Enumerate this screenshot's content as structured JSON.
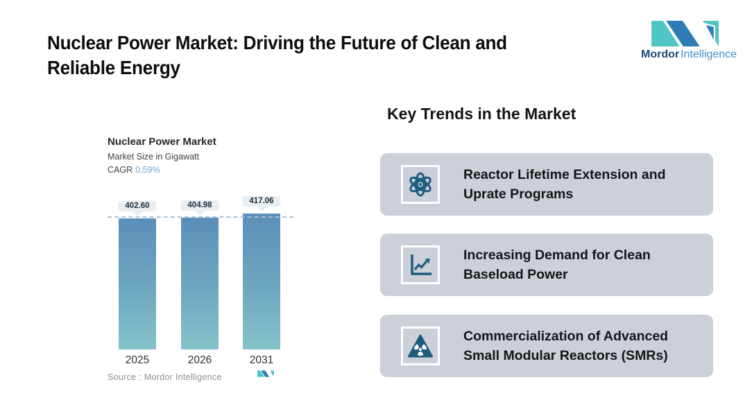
{
  "header": {
    "title_line1": "Nuclear Power Market: Driving the Future of Clean and",
    "title_line2": "Reliable Energy",
    "logo": {
      "brand_bold": "Mordor",
      "brand_light": "Intelligence",
      "mark_teal": "#4fc5c5",
      "mark_blue": "#2d7cb6"
    }
  },
  "chart": {
    "title": "Nuclear Power Market",
    "subtitle": "Market Size in Gigawatt",
    "cagr_label": "CAGR",
    "cagr_value": "0.59%",
    "cagr_value_color": "#6ba3d6",
    "source_text": "Source :  Mordor Intelligence"
  },
  "chart_data": {
    "type": "bar",
    "title": "Nuclear Power Market",
    "ylabel": "Market Size in Gigawatt",
    "xlabel": "",
    "cagr": "0.59%",
    "categories": [
      "2025",
      "2026",
      "2031"
    ],
    "values": [
      402.6,
      404.98,
      417.06
    ],
    "value_labels": [
      "402.60",
      "404.98",
      "417.06"
    ],
    "bar_color_top": "#5b8fba",
    "bar_color_bottom": "#85c3c9",
    "reference_line": {
      "style": "dashed",
      "at_value": 402.6,
      "color": "#a9c2d8"
    },
    "grid": false,
    "legend": false,
    "source": "Mordor Intelligence"
  },
  "trends": {
    "heading": "Key Trends in the Market",
    "card_bg": "#cbd0d9",
    "icon_color": "#1d5c7e",
    "items": [
      {
        "icon": "atom-icon",
        "lines": [
          "Reactor Lifetime Extension and",
          "Uprate Programs"
        ]
      },
      {
        "icon": "chart-increase-icon",
        "lines": [
          "Increasing Demand for Clean",
          "Baseload Power"
        ]
      },
      {
        "icon": "radiation-warning-icon",
        "lines": [
          "Commercialization of Advanced",
          "Small Modular Reactors (SMRs)"
        ]
      }
    ]
  }
}
